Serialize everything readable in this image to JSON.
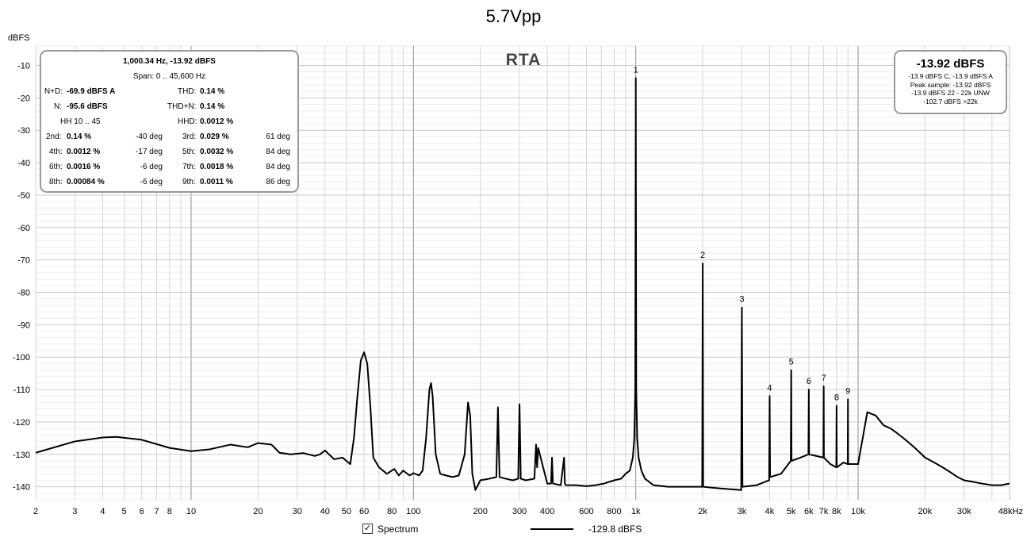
{
  "chart_data": {
    "type": "line",
    "title": "5.7Vpp",
    "ylabel": "dBFS",
    "xlabel": "",
    "x_scale": "log",
    "xlim": [
      2,
      48000
    ],
    "ylim": [
      -144,
      -4
    ],
    "grid": true,
    "yticks": [
      -10,
      -20,
      -30,
      -40,
      -50,
      -60,
      -70,
      -80,
      -90,
      -100,
      -110,
      -120,
      -130,
      -140
    ],
    "ytick_labels": [
      "-10",
      "-20",
      "-30",
      "-40",
      "-50",
      "-60",
      "-70",
      "-80",
      "-90",
      "-100",
      "-110",
      "-120",
      "-130",
      "-140"
    ],
    "xticks": [
      2,
      3,
      4,
      5,
      6,
      7,
      8,
      10,
      20,
      30,
      40,
      50,
      60,
      80,
      100,
      200,
      300,
      400,
      600,
      800,
      1000,
      2000,
      3000,
      4000,
      5000,
      6000,
      7000,
      8000,
      10000,
      20000,
      30000,
      48000
    ],
    "xtick_labels": [
      "2",
      "3",
      "4",
      "5",
      "6",
      "7",
      "8",
      "10",
      "20",
      "30",
      "40",
      "50",
      "60",
      "80",
      "100",
      "200",
      "300",
      "400",
      "600",
      "800",
      "1k",
      "2k",
      "3k",
      "4k",
      "5k",
      "6k",
      "7k",
      "8k",
      "10k",
      "20k",
      "30k",
      "48kHz"
    ],
    "series": [
      {
        "name": "Spectrum",
        "color": "#000000",
        "x": [
          2,
          3,
          4,
          4.6,
          6,
          8,
          10,
          12,
          15,
          18,
          20,
          23,
          25,
          28,
          32,
          36,
          38,
          40,
          44,
          48,
          52,
          54,
          56,
          58,
          60,
          62,
          64,
          66,
          70,
          76,
          82,
          86,
          90,
          96,
          100,
          106,
          110,
          114,
          118,
          120,
          122,
          126,
          132,
          140,
          150,
          160,
          170,
          176,
          180,
          184,
          190,
          200,
          220,
          236,
          240,
          244,
          260,
          280,
          296,
          300,
          304,
          320,
          350,
          356,
          360,
          364,
          400,
          416,
          420,
          424,
          460,
          476,
          480,
          484,
          540,
          600,
          660,
          720,
          800,
          860,
          900,
          940,
          970,
          985,
          995,
          1000.34,
          1005,
          1015,
          1030,
          1060,
          1100,
          1200,
          1400,
          1700,
          1990,
          2000.7,
          2010,
          2400,
          2980,
          3001,
          3020,
          3500,
          3980,
          4001.4,
          4020,
          4500,
          4980,
          5001.7,
          5020,
          5500,
          5980,
          6002,
          6020,
          6500,
          6980,
          7002.4,
          7020,
          7500,
          7980,
          8002.7,
          8020,
          8600,
          8980,
          9003,
          9020,
          10000,
          11000,
          12000,
          13000,
          14000,
          15000,
          16000,
          17000,
          18000,
          19000,
          20000,
          22000,
          24000,
          26000,
          28000,
          30000,
          33000,
          36000,
          40000,
          44000,
          48000
        ],
        "y": [
          -129.5,
          -126,
          -124.8,
          -124.6,
          -125.5,
          -128,
          -129,
          -128.5,
          -127,
          -127.8,
          -126.5,
          -127,
          -129.5,
          -130,
          -129.6,
          -130.5,
          -130,
          -128.8,
          -131.5,
          -131,
          -133,
          -125,
          -112,
          -101,
          -98.5,
          -102,
          -115,
          -131,
          -134,
          -136,
          -134.5,
          -136.5,
          -135,
          -136.5,
          -135.8,
          -136.5,
          -135,
          -125,
          -110,
          -108,
          -112,
          -130,
          -136,
          -136.5,
          -137,
          -136.5,
          -130,
          -114,
          -118,
          -136,
          -141,
          -138,
          -137.5,
          -137,
          -115.5,
          -137,
          -137.5,
          -138,
          -137.5,
          -114.5,
          -137.5,
          -138,
          -137.5,
          -127,
          -134,
          -128,
          -139,
          -139,
          -131,
          -139,
          -139.5,
          -131,
          -139,
          -139.5,
          -139.5,
          -139.8,
          -139.5,
          -139,
          -138,
          -137.5,
          -136,
          -135,
          -131,
          -125,
          -110,
          -13.92,
          -110,
          -125,
          -131,
          -135,
          -137.5,
          -139.5,
          -140,
          -140,
          -140,
          -71.1,
          -140,
          -140.5,
          -141,
          -84.7,
          -140,
          -139.5,
          -138,
          -112,
          -137,
          -136,
          -132,
          -104,
          -132,
          -131,
          -130,
          -110,
          -130,
          -130.5,
          -131,
          -109,
          -131,
          -133,
          -134,
          -115,
          -134,
          -132.5,
          -133,
          -113,
          -133,
          -133,
          -117,
          -118,
          -121,
          -122,
          -123.5,
          -125,
          -126.5,
          -128,
          -129.5,
          -131,
          -132.5,
          -134,
          -135.5,
          -137,
          -138,
          -138.5,
          -139,
          -139.5,
          -139.5,
          -139
        ]
      }
    ],
    "harmonic_markers": [
      {
        "label": "1",
        "x": 1000.34,
        "y": -13.92
      },
      {
        "label": "2",
        "x": 2000.7,
        "y": -71.1
      },
      {
        "label": "3",
        "x": 3001,
        "y": -84.7
      },
      {
        "label": "4",
        "x": 4001.4,
        "y": -112
      },
      {
        "label": "5",
        "x": 5001.7,
        "y": -104
      },
      {
        "label": "6",
        "x": 6002,
        "y": -110
      },
      {
        "label": "7",
        "x": 7002.4,
        "y": -109
      },
      {
        "label": "8",
        "x": 8002.7,
        "y": -115
      },
      {
        "label": "9",
        "x": 9003,
        "y": -113
      }
    ]
  },
  "plot_label": "RTA",
  "stats_panel": {
    "header": "1,000.34 Hz, -13.92 dBFS",
    "span": "Span: 0 .. 45,600 Hz",
    "nd_label": "N+D:",
    "nd_value": "-69.9 dBFS A",
    "thd_label": "THD:",
    "thd_value": "0.14 %",
    "n_label": "N:",
    "n_value": "-95.6 dBFS",
    "thdn_label": "THD+N:",
    "thdn_value": "0.14 %",
    "hh_range": "HH 10 .. 45",
    "hhd_label": "HHD:",
    "hhd_value": "0.0012 %",
    "harmonics": [
      {
        "label": "2nd:",
        "value": "0.14 %",
        "phase": "-40 deg"
      },
      {
        "label": "3rd:",
        "value": "0.029 %",
        "phase": "61 deg"
      },
      {
        "label": "4th:",
        "value": "0.0012 %",
        "phase": "-17 deg"
      },
      {
        "label": "5th:",
        "value": "0.0032 %",
        "phase": "84 deg"
      },
      {
        "label": "6th:",
        "value": "0.0016 %",
        "phase": "-6 deg"
      },
      {
        "label": "7th:",
        "value": "0.0018 %",
        "phase": "84 deg"
      },
      {
        "label": "8th:",
        "value": "0.00084 %",
        "phase": "-6 deg"
      },
      {
        "label": "9th:",
        "value": "0.0011 %",
        "phase": "86 deg"
      }
    ]
  },
  "level_panel": {
    "level": "-13.92 dBFS",
    "weighted": "-13.9 dBFS C, -13.9 dBFS A",
    "peak": "Peak sample: -13.92 dBFS",
    "unweighted": "-13.9 dBFS 22 - 22k UNW",
    "above": "-102.7 dBFS >22k"
  },
  "legend": {
    "checkbox_checked": true,
    "series_label": "Spectrum",
    "series_value": "-129.8 dBFS"
  }
}
